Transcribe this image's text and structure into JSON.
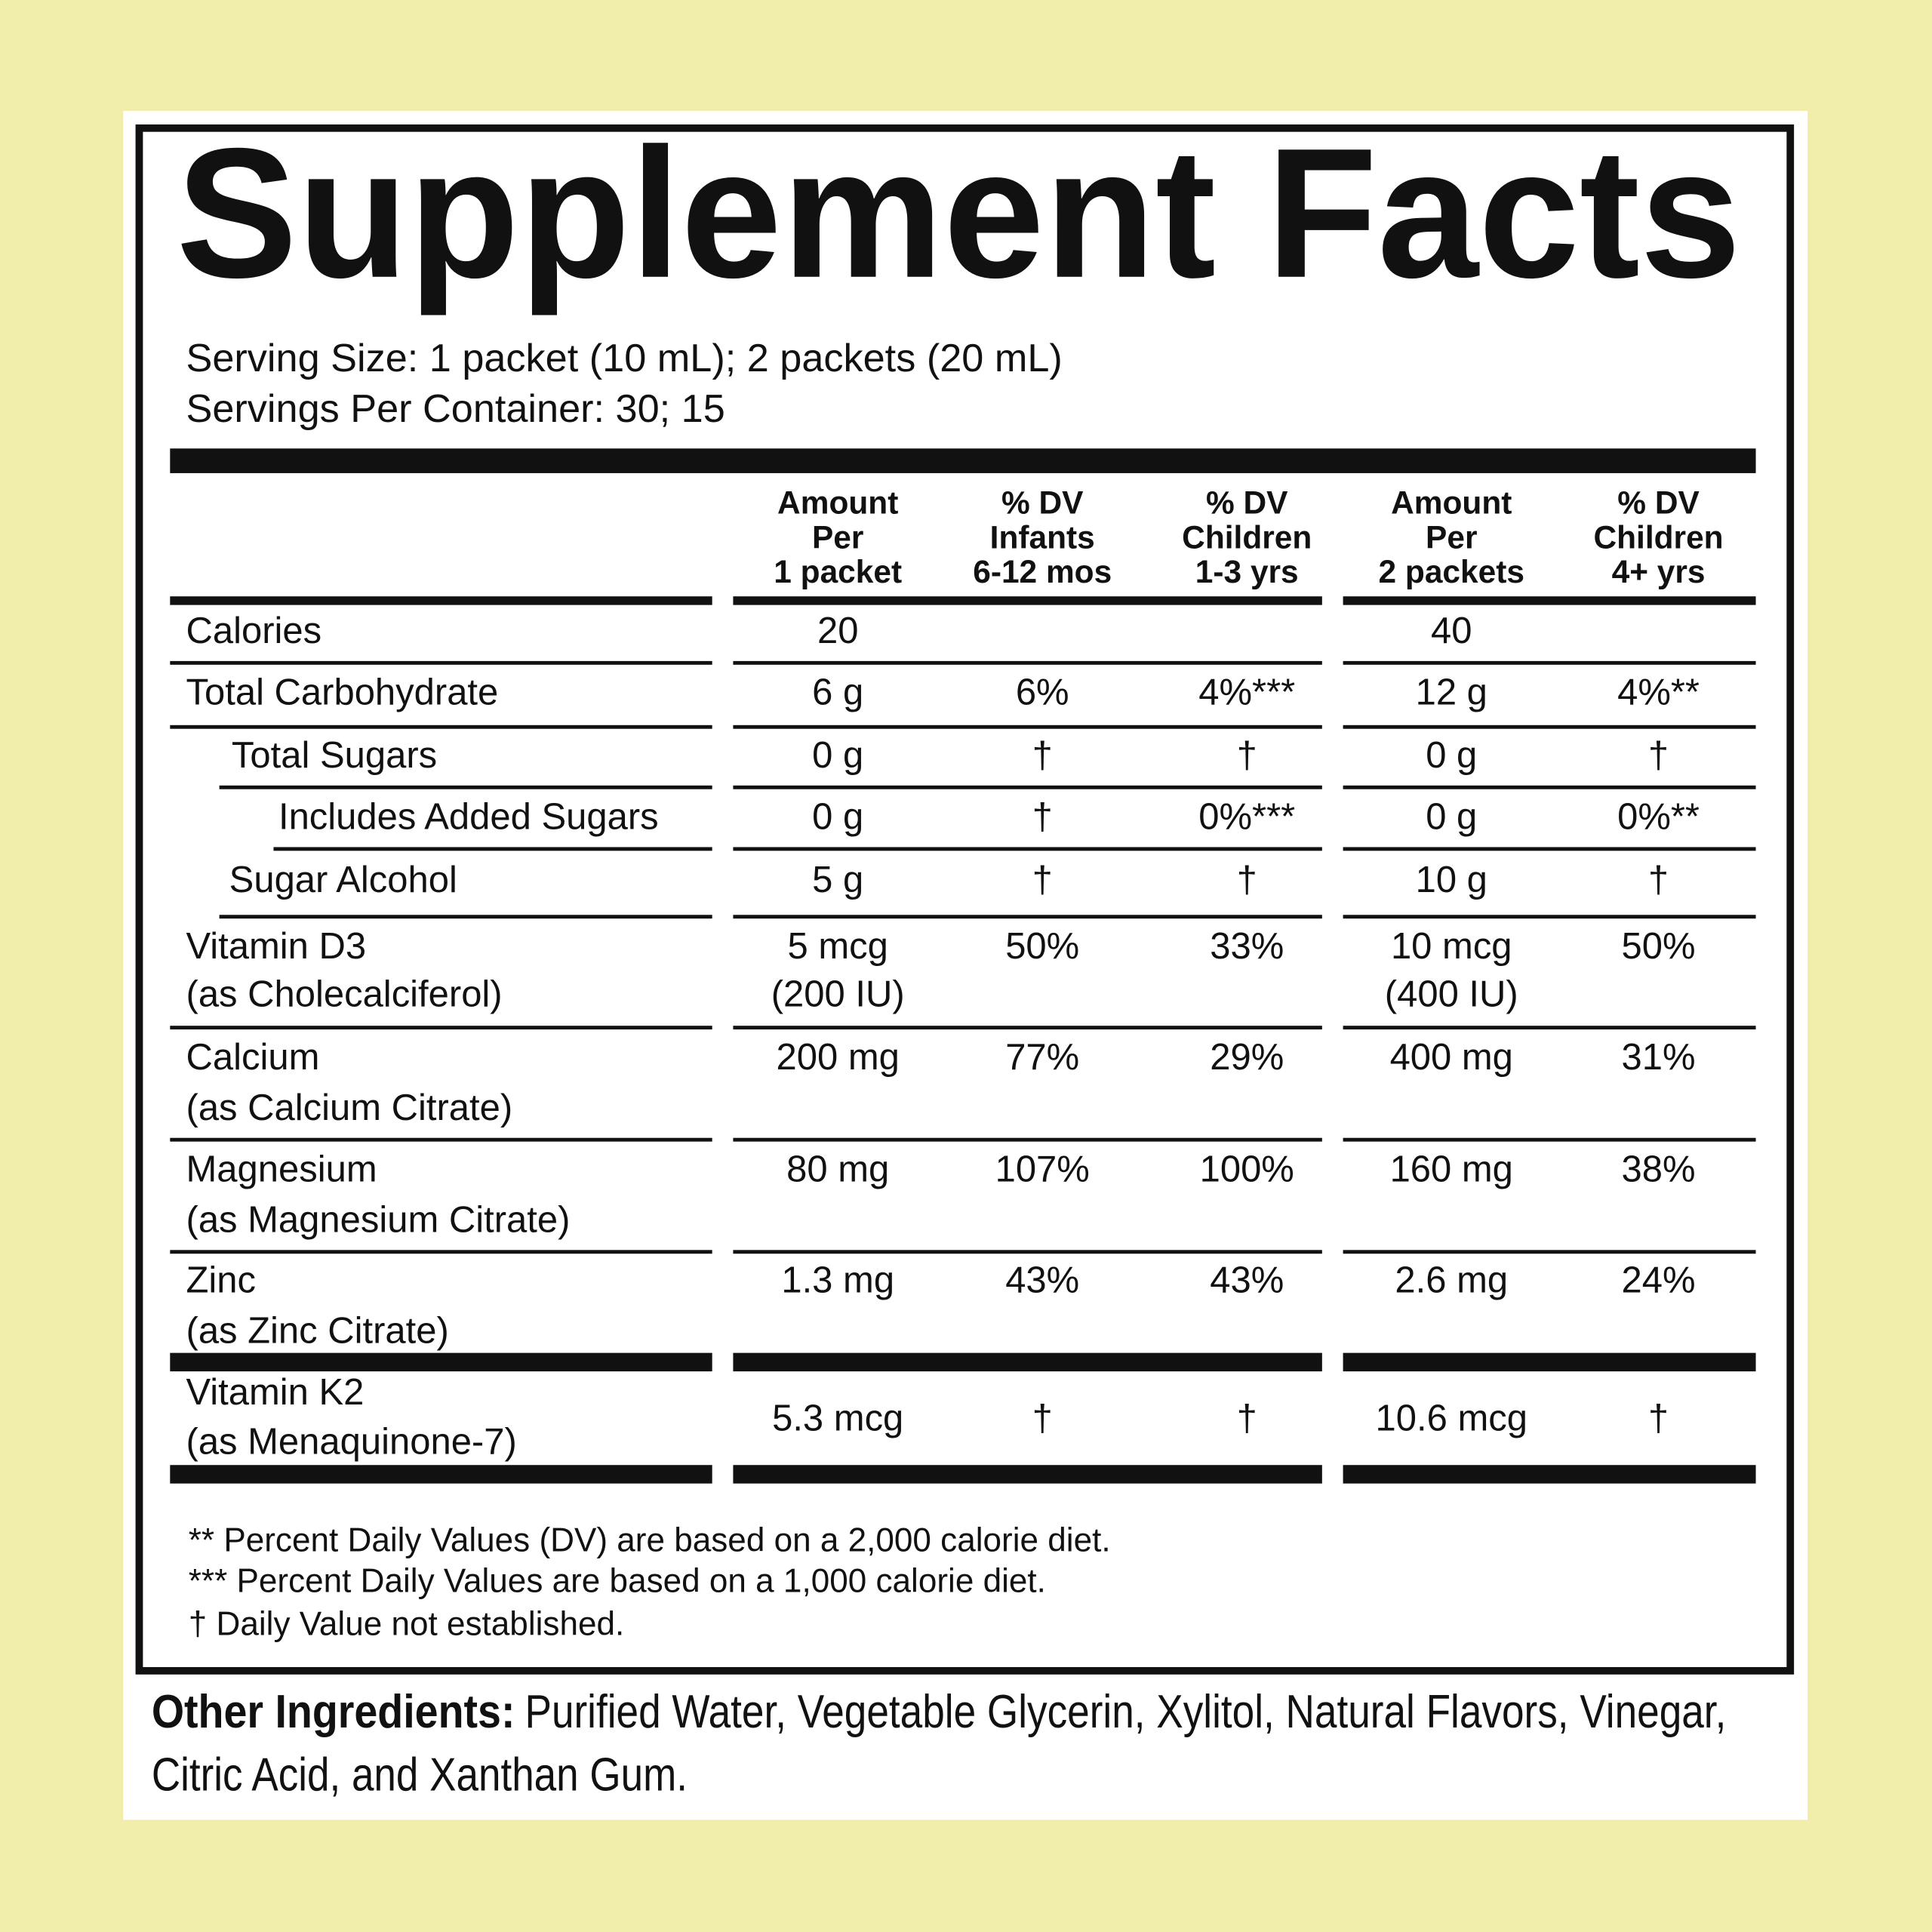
{
  "header": {
    "title": "Supplement Facts",
    "serving_size": "Serving Size: 1 packet (10 mL); 2 packets (20 mL)",
    "servings_per_container": "Servings Per Container: 30; 15"
  },
  "table": {
    "columns": [
      [
        "Amount",
        "Per",
        "1 packet"
      ],
      [
        "% DV",
        "Infants",
        "6-12 mos"
      ],
      [
        "% DV",
        "Children",
        "1-3 yrs"
      ],
      [
        "Amount",
        "Per",
        "2 packets"
      ],
      [
        "% DV",
        "Children",
        "4+ yrs"
      ]
    ],
    "rows": [
      {
        "label": [
          "Calories"
        ],
        "values": [
          [
            "20"
          ],
          null,
          null,
          [
            "40"
          ],
          null
        ]
      },
      {
        "label": [
          "Total Carbohydrate"
        ],
        "values": [
          [
            "6 g"
          ],
          [
            "6%"
          ],
          [
            "4%***"
          ],
          [
            "12 g"
          ],
          [
            "4%**"
          ]
        ]
      },
      {
        "label": [
          "Total Sugars"
        ],
        "values": [
          [
            "0 g"
          ],
          [
            "†"
          ],
          [
            "†"
          ],
          [
            "0 g"
          ],
          [
            "†"
          ]
        ]
      },
      {
        "label": [
          "Includes Added Sugars"
        ],
        "values": [
          [
            "0 g"
          ],
          [
            "†"
          ],
          [
            "0%***"
          ],
          [
            "0 g"
          ],
          [
            "0%**"
          ]
        ]
      },
      {
        "label": [
          "Sugar Alcohol"
        ],
        "values": [
          [
            "5 g"
          ],
          [
            "†"
          ],
          [
            "†"
          ],
          [
            "10 g"
          ],
          [
            "†"
          ]
        ]
      },
      {
        "label": [
          "Vitamin D3",
          "(as Cholecalciferol)"
        ],
        "values": [
          [
            "5 mcg",
            "(200 IU)"
          ],
          [
            "50%"
          ],
          [
            "33%"
          ],
          [
            "10 mcg",
            "(400 IU)"
          ],
          [
            "50%"
          ]
        ]
      },
      {
        "label": [
          "Calcium",
          "(as Calcium Citrate)"
        ],
        "values": [
          [
            "200 mg"
          ],
          [
            "77%"
          ],
          [
            "29%"
          ],
          [
            "400 mg"
          ],
          [
            "31%"
          ]
        ]
      },
      {
        "label": [
          "Magnesium",
          "(as Magnesium Citrate)"
        ],
        "values": [
          [
            "80 mg"
          ],
          [
            "107%"
          ],
          [
            "100%"
          ],
          [
            "160 mg"
          ],
          [
            "38%"
          ]
        ]
      },
      {
        "label": [
          "Zinc",
          "(as Zinc Citrate)"
        ],
        "values": [
          [
            "1.3 mg"
          ],
          [
            "43%"
          ],
          [
            "43%"
          ],
          [
            "2.6 mg"
          ],
          [
            "24%"
          ]
        ]
      },
      {
        "label": [
          "Vitamin K2",
          "(as Menaquinone-7)"
        ],
        "values": [
          [
            "5.3 mcg"
          ],
          [
            "†"
          ],
          [
            "†"
          ],
          [
            "10.6 mcg"
          ],
          [
            "†"
          ]
        ]
      }
    ]
  },
  "footnotes": [
    "** Percent Daily Values (DV) are based on a 2,000 calorie diet.",
    "*** Percent Daily Values are based on a 1,000 calorie diet.",
    "† Daily Value not established."
  ],
  "other_ingredients": {
    "label": "Other Ingredients:",
    "lines": [
      "Purified Water, Vegetable Glycerin, Xylitol, Natural Flavors, Vinegar,",
      "Citric Acid, and Xanthan Gum."
    ]
  }
}
